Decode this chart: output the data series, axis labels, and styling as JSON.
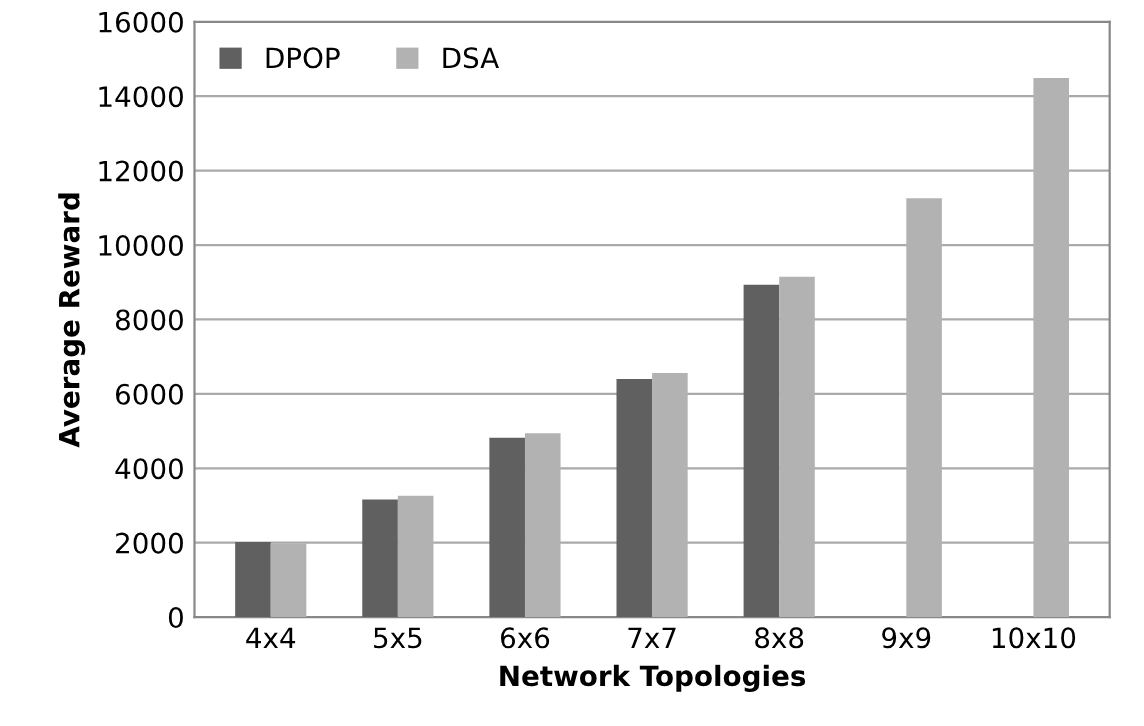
{
  "chart_data": {
    "type": "bar",
    "xlabel": "Network Topologies",
    "ylabel": "Average Reward",
    "categories": [
      "4x4",
      "5x5",
      "6x6",
      "7x7",
      "8x8",
      "9x9",
      "10x10"
    ],
    "series": [
      {
        "name": "DPOP",
        "color": "#606060",
        "values": [
          2020,
          3160,
          4820,
          6400,
          8930,
          null,
          null
        ]
      },
      {
        "name": "DSA",
        "color": "#b2b2b2",
        "values": [
          1980,
          3260,
          4940,
          6560,
          9150,
          11260,
          14490
        ]
      }
    ],
    "ylim": [
      0,
      16000
    ],
    "yticks": [
      0,
      2000,
      4000,
      6000,
      8000,
      10000,
      12000,
      14000,
      16000
    ],
    "grid": "y",
    "legend": "top left"
  }
}
